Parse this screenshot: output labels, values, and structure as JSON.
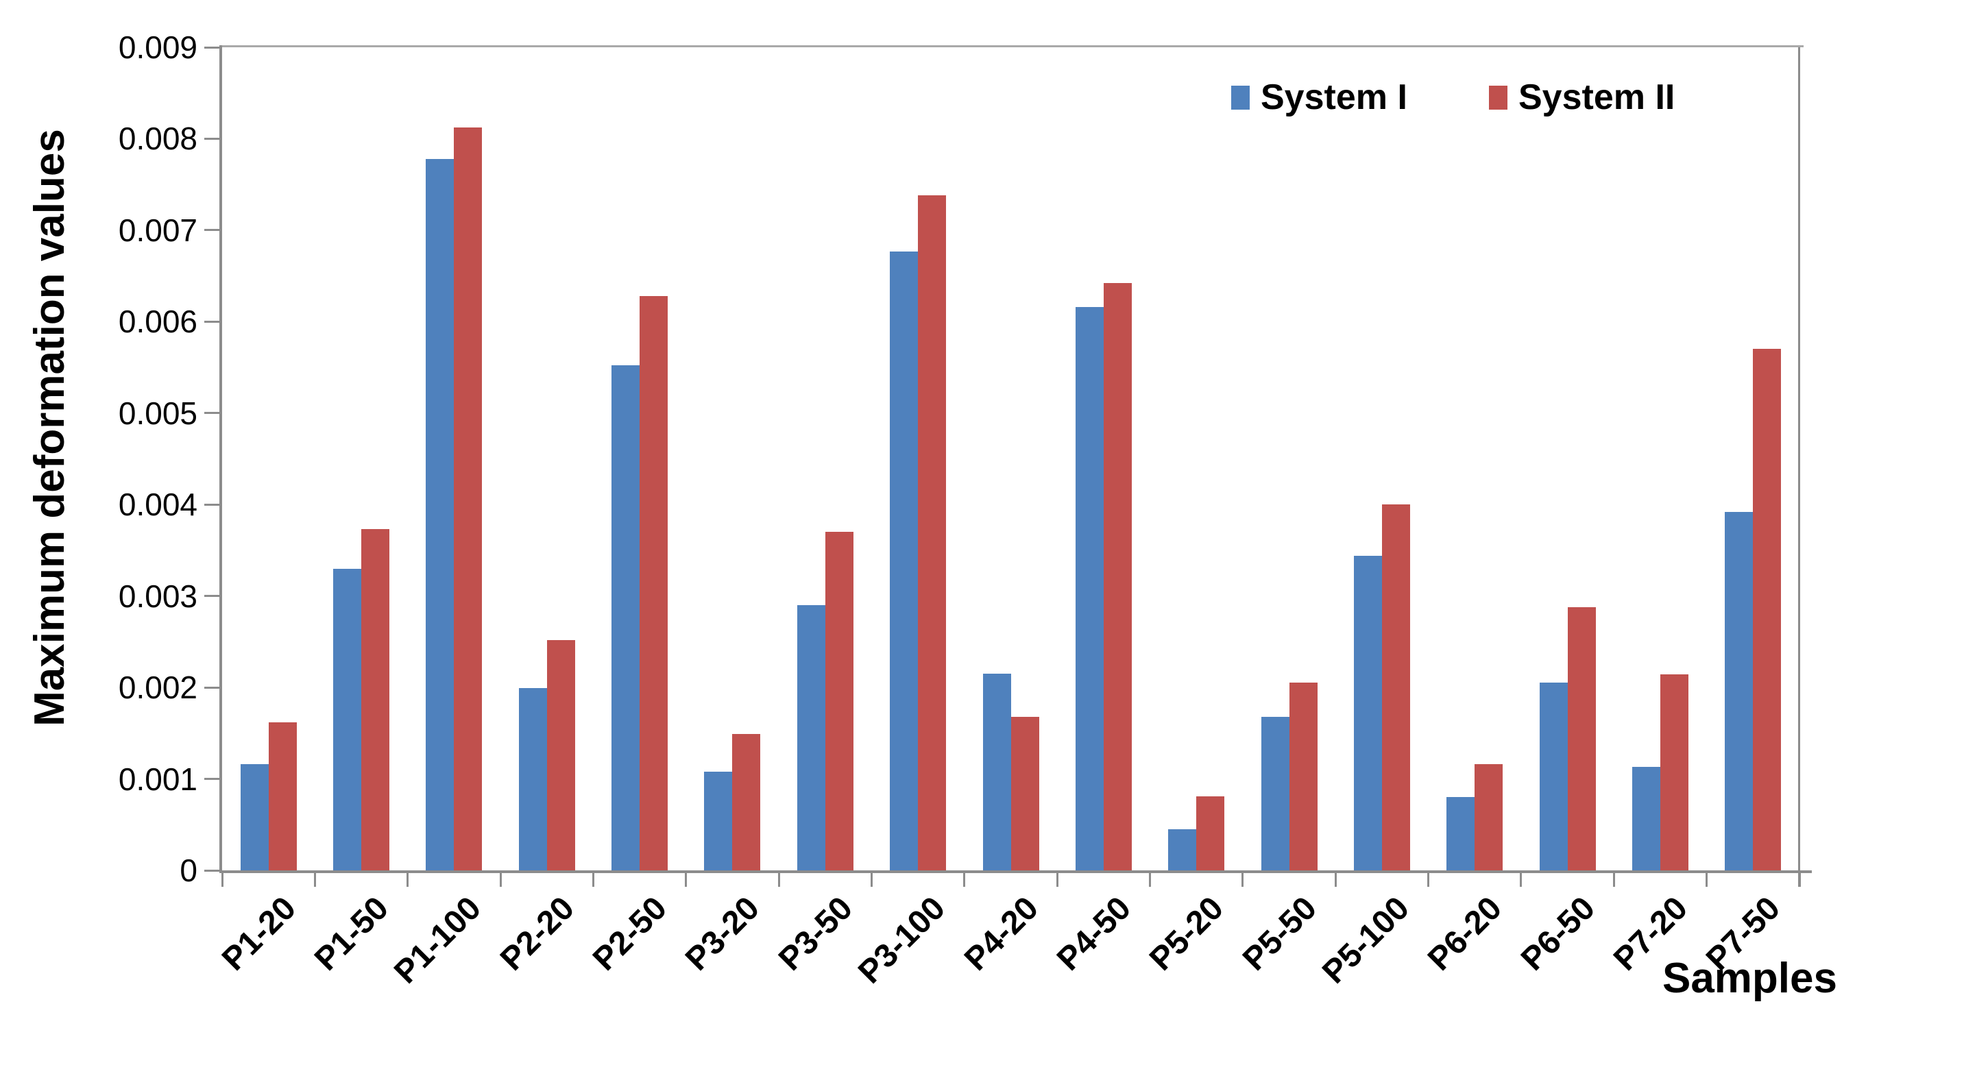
{
  "chart_data": {
    "type": "bar",
    "title": "",
    "xlabel": "Samples",
    "ylabel": "Maximum deformation values",
    "ylim": [
      0,
      0.009
    ],
    "ytick_step": 0.001,
    "ytick_labels": [
      "0",
      "0.001",
      "0.002",
      "0.003",
      "0.004",
      "0.005",
      "0.006",
      "0.007",
      "0.008",
      "0.009"
    ],
    "grid": false,
    "legend_position": "top-right-inside",
    "categories": [
      "P1-20",
      "P1-50",
      "P1-100",
      "P2-20",
      "P2-50",
      "P3-20",
      "P3-50",
      "P3-100",
      "P4-20",
      "P4-50",
      "P5-20",
      "P5-50",
      "P5-100",
      "P6-20",
      "P6-50",
      "P7-20",
      "P7-50"
    ],
    "series": [
      {
        "name": "System I",
        "color": "#4F81BD",
        "values": [
          0.00116,
          0.0033,
          0.00778,
          0.00199,
          0.00552,
          0.00108,
          0.0029,
          0.00677,
          0.00215,
          0.00616,
          0.00045,
          0.00168,
          0.00344,
          0.0008,
          0.00205,
          0.00113,
          0.00392
        ]
      },
      {
        "name": "System II",
        "color": "#C0504D",
        "values": [
          0.00162,
          0.00373,
          0.00812,
          0.00252,
          0.00628,
          0.00149,
          0.0037,
          0.00738,
          0.00168,
          0.00642,
          0.00081,
          0.00205,
          0.004,
          0.00116,
          0.00288,
          0.00214,
          0.0057
        ]
      }
    ]
  },
  "colors": {
    "axis": "#8c8c8c",
    "plot_border": "#a9a9a9",
    "text": "#000000",
    "background": "#ffffff"
  }
}
